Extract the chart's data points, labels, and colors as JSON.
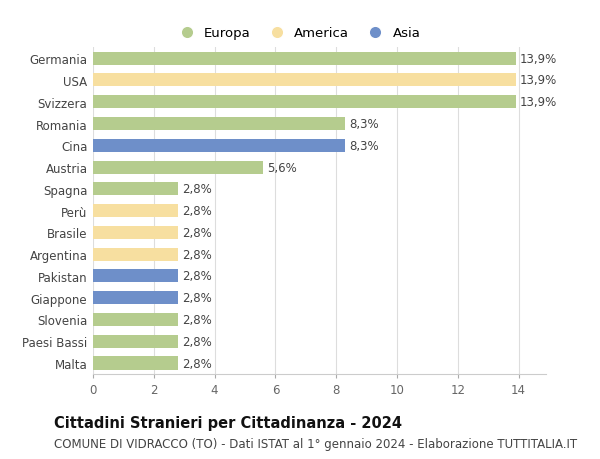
{
  "categories": [
    "Germania",
    "USA",
    "Svizzera",
    "Romania",
    "Cina",
    "Austria",
    "Spagna",
    "Perù",
    "Brasile",
    "Argentina",
    "Pakistan",
    "Giappone",
    "Slovenia",
    "Paesi Bassi",
    "Malta"
  ],
  "values": [
    13.9,
    13.9,
    13.9,
    8.3,
    8.3,
    5.6,
    2.8,
    2.8,
    2.8,
    2.8,
    2.8,
    2.8,
    2.8,
    2.8,
    2.8
  ],
  "labels": [
    "13,9%",
    "13,9%",
    "13,9%",
    "8,3%",
    "8,3%",
    "5,6%",
    "2,8%",
    "2,8%",
    "2,8%",
    "2,8%",
    "2,8%",
    "2,8%",
    "2,8%",
    "2,8%",
    "2,8%"
  ],
  "continents": [
    "Europa",
    "America",
    "Europa",
    "Europa",
    "Asia",
    "Europa",
    "Europa",
    "America",
    "America",
    "America",
    "Asia",
    "Asia",
    "Europa",
    "Europa",
    "Europa"
  ],
  "colors": {
    "Europa": "#b5cc8e",
    "America": "#f7dfa0",
    "Asia": "#6e8fc9"
  },
  "title": "Cittadini Stranieri per Cittadinanza - 2024",
  "subtitle": "COMUNE DI VIDRACCO (TO) - Dati ISTAT al 1° gennaio 2024 - Elaborazione TUTTITALIA.IT",
  "xlim_max": 14,
  "xticks": [
    0,
    2,
    4,
    6,
    8,
    10,
    12,
    14
  ],
  "background_color": "#ffffff",
  "grid_color": "#dddddd",
  "bar_height": 0.6,
  "label_fontsize": 8.5,
  "ytick_fontsize": 8.5,
  "xtick_fontsize": 8.5,
  "title_fontsize": 10.5,
  "subtitle_fontsize": 8.5
}
